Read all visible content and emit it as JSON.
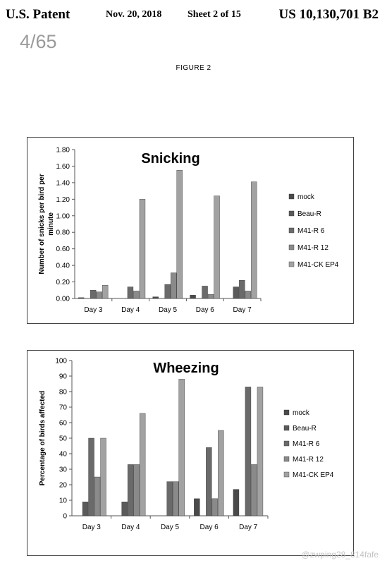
{
  "header": {
    "left": "U.S. Patent",
    "date": "Nov. 20, 2018",
    "sheet": "Sheet 2 of 15",
    "patent_number": "US 10,130,701 B2"
  },
  "page_indicator": "4/65",
  "figure_label": "FIGURE 2",
  "watermark": "@zwping28_814fafe",
  "chart_data": [
    {
      "type": "bar",
      "title": "Snicking",
      "xlabel": "",
      "ylabel": "Number of snicks per bird per minute",
      "categories": [
        "Day 3",
        "Day 4",
        "Day 5",
        "Day 6",
        "Day 7"
      ],
      "yticks": [
        "0.00",
        "0.20",
        "0.40",
        "0.60",
        "0.80",
        "1.00",
        "1.20",
        "1.40",
        "1.60",
        "1.80"
      ],
      "ylim": [
        0,
        1.8
      ],
      "grid": false,
      "legend_position": "right",
      "series": [
        {
          "name": "mock",
          "values": [
            0.01,
            0.0,
            0.02,
            0.04,
            0.0
          ]
        },
        {
          "name": "Beau-R",
          "values": [
            0.0,
            0.0,
            0.0,
            0.0,
            0.14
          ]
        },
        {
          "name": "M41-R 6",
          "values": [
            0.1,
            0.14,
            0.17,
            0.15,
            0.22
          ]
        },
        {
          "name": "M41-R 12",
          "values": [
            0.08,
            0.09,
            0.31,
            0.05,
            0.09
          ]
        },
        {
          "name": "M41-CK EP4",
          "values": [
            0.16,
            1.2,
            1.55,
            1.24,
            1.41
          ]
        }
      ],
      "colors": [
        "#4a4a4a",
        "#5a5a5a",
        "#6a6a6a",
        "#8a8a8a",
        "#a2a2a2"
      ]
    },
    {
      "type": "bar",
      "title": "Wheezing",
      "xlabel": "",
      "ylabel": "Percentage of birds affected",
      "categories": [
        "Day 3",
        "Day 4",
        "Day 5",
        "Day 6",
        "Day 7"
      ],
      "yticks": [
        "0",
        "10",
        "20",
        "30",
        "40",
        "50",
        "60",
        "70",
        "80",
        "90",
        "100"
      ],
      "ylim": [
        0,
        100
      ],
      "grid": false,
      "legend_position": "right",
      "series": [
        {
          "name": "mock",
          "values": [
            0,
            0,
            0,
            11,
            17
          ]
        },
        {
          "name": "Beau-R",
          "values": [
            9,
            9,
            0,
            0,
            0
          ]
        },
        {
          "name": "M41-R 6",
          "values": [
            50,
            33,
            22,
            44,
            83
          ]
        },
        {
          "name": "M41-R 12",
          "values": [
            25,
            33,
            22,
            11,
            33
          ]
        },
        {
          "name": "M41-CK EP4",
          "values": [
            50,
            66,
            88,
            55,
            83
          ]
        }
      ],
      "colors": [
        "#4a4a4a",
        "#5a5a5a",
        "#6a6a6a",
        "#8a8a8a",
        "#a2a2a2"
      ]
    }
  ]
}
